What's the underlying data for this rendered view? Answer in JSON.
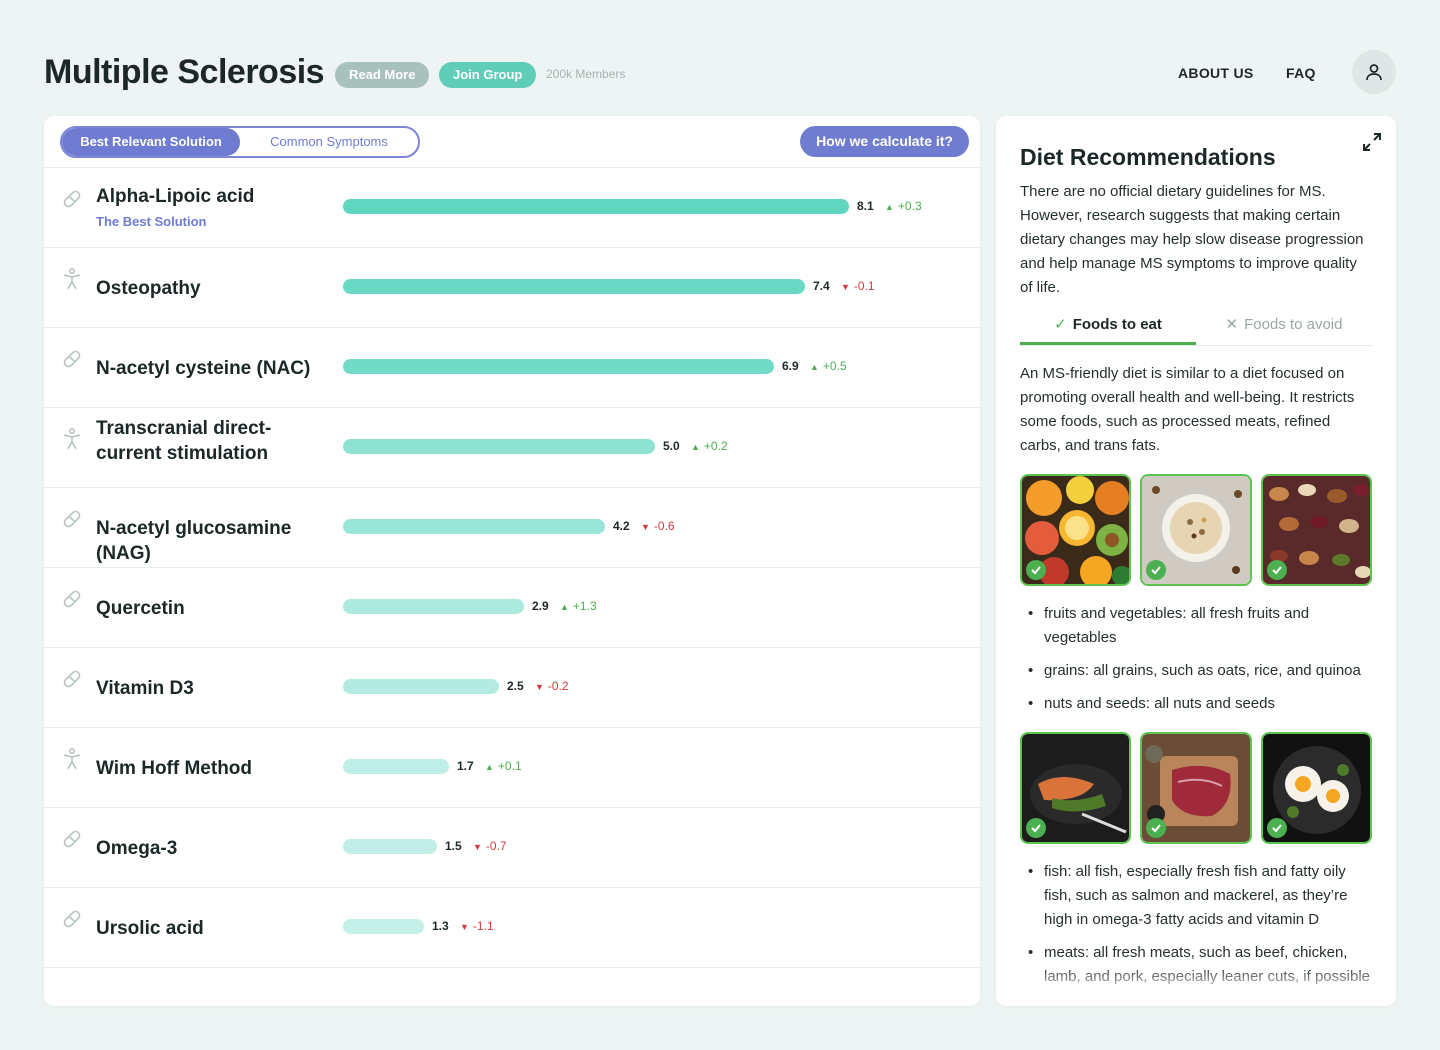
{
  "header": {
    "title": "Multiple Sclerosis",
    "read_more": "Read More",
    "join_group": "Join Group",
    "members": "200k Members",
    "nav": {
      "about": "ABOUT US",
      "faq": "FAQ"
    }
  },
  "left": {
    "toggle": {
      "active": "Best Relevant Solution",
      "inactive": "Common Symptoms"
    },
    "calc_button": "How we calculate it?",
    "rows": [
      {
        "name": "Alpha-Lipoic acid",
        "sub": "The Best Solution",
        "icon": "pill-icon",
        "score": "8.1",
        "delta": "+0.3",
        "dir": "up",
        "value": 8.1
      },
      {
        "name": "Osteopathy",
        "sub": "",
        "icon": "person-icon",
        "score": "7.4",
        "delta": "-0.1",
        "dir": "down",
        "value": 7.4
      },
      {
        "name": "N-acetyl cysteine (NAC)",
        "sub": "",
        "icon": "pill-icon",
        "score": "6.9",
        "delta": "+0.5",
        "dir": "up",
        "value": 6.9
      },
      {
        "name": "Transcranial direct-current stimulation",
        "sub": "",
        "icon": "person-icon",
        "score": "5.0",
        "delta": "+0.2",
        "dir": "up",
        "value": 5.0
      },
      {
        "name": "N-acetyl glucosamine (NAG)",
        "sub": "",
        "icon": "pill-icon",
        "score": "4.2",
        "delta": "-0.6",
        "dir": "down",
        "value": 4.2
      },
      {
        "name": "Quercetin",
        "sub": "",
        "icon": "pill-icon",
        "score": "2.9",
        "delta": "+1.3",
        "dir": "up",
        "value": 2.9
      },
      {
        "name": "Vitamin D3",
        "sub": "",
        "icon": "pill-icon",
        "score": "2.5",
        "delta": "-0.2",
        "dir": "down",
        "value": 2.5
      },
      {
        "name": "Wim Hoff Method",
        "sub": "",
        "icon": "person-icon",
        "score": "1.7",
        "delta": "+0.1",
        "dir": "up",
        "value": 1.7
      },
      {
        "name": "Omega-3",
        "sub": "",
        "icon": "pill-icon",
        "score": "1.5",
        "delta": "-0.7",
        "dir": "down",
        "value": 1.5
      },
      {
        "name": "Ursolic acid",
        "sub": "",
        "icon": "pill-icon",
        "score": "1.3",
        "delta": "-1.1",
        "dir": "down",
        "value": 1.3
      }
    ]
  },
  "right": {
    "title": "Diet Recommendations",
    "intro": "There are no official dietary guidelines for MS. However, research suggests that making certain dietary changes may help slow disease progression and help manage MS symptoms to improve quality of life.",
    "tab_eat": "Foods to eat",
    "tab_avoid": "Foods to avoid",
    "desc": "An MS-friendly diet is similar to a diet focused on promoting overall health and well-being. It restricts some foods, such as processed meats, refined carbs, and trans fats.",
    "bullets1": [
      "fruits and vegetables: all fresh fruits and vegetables",
      "grains: all grains, such as oats, rice, and quinoa",
      "nuts and seeds: all nuts and seeds"
    ],
    "bullets2": [
      "fish: all fish, especially fresh fish and fatty oily fish, such as salmon and mackerel, as they’re high in omega-3 fatty acids and vitamin D",
      "meats: all fresh meats, such as beef, chicken, lamb, and pork, especially leaner cuts, if possible"
    ]
  },
  "colors": {
    "accent": "#6f7bd0",
    "bar": "#8fe0d2",
    "up": "#4caf50",
    "down": "#d33a3a",
    "check": "#4caf50"
  }
}
